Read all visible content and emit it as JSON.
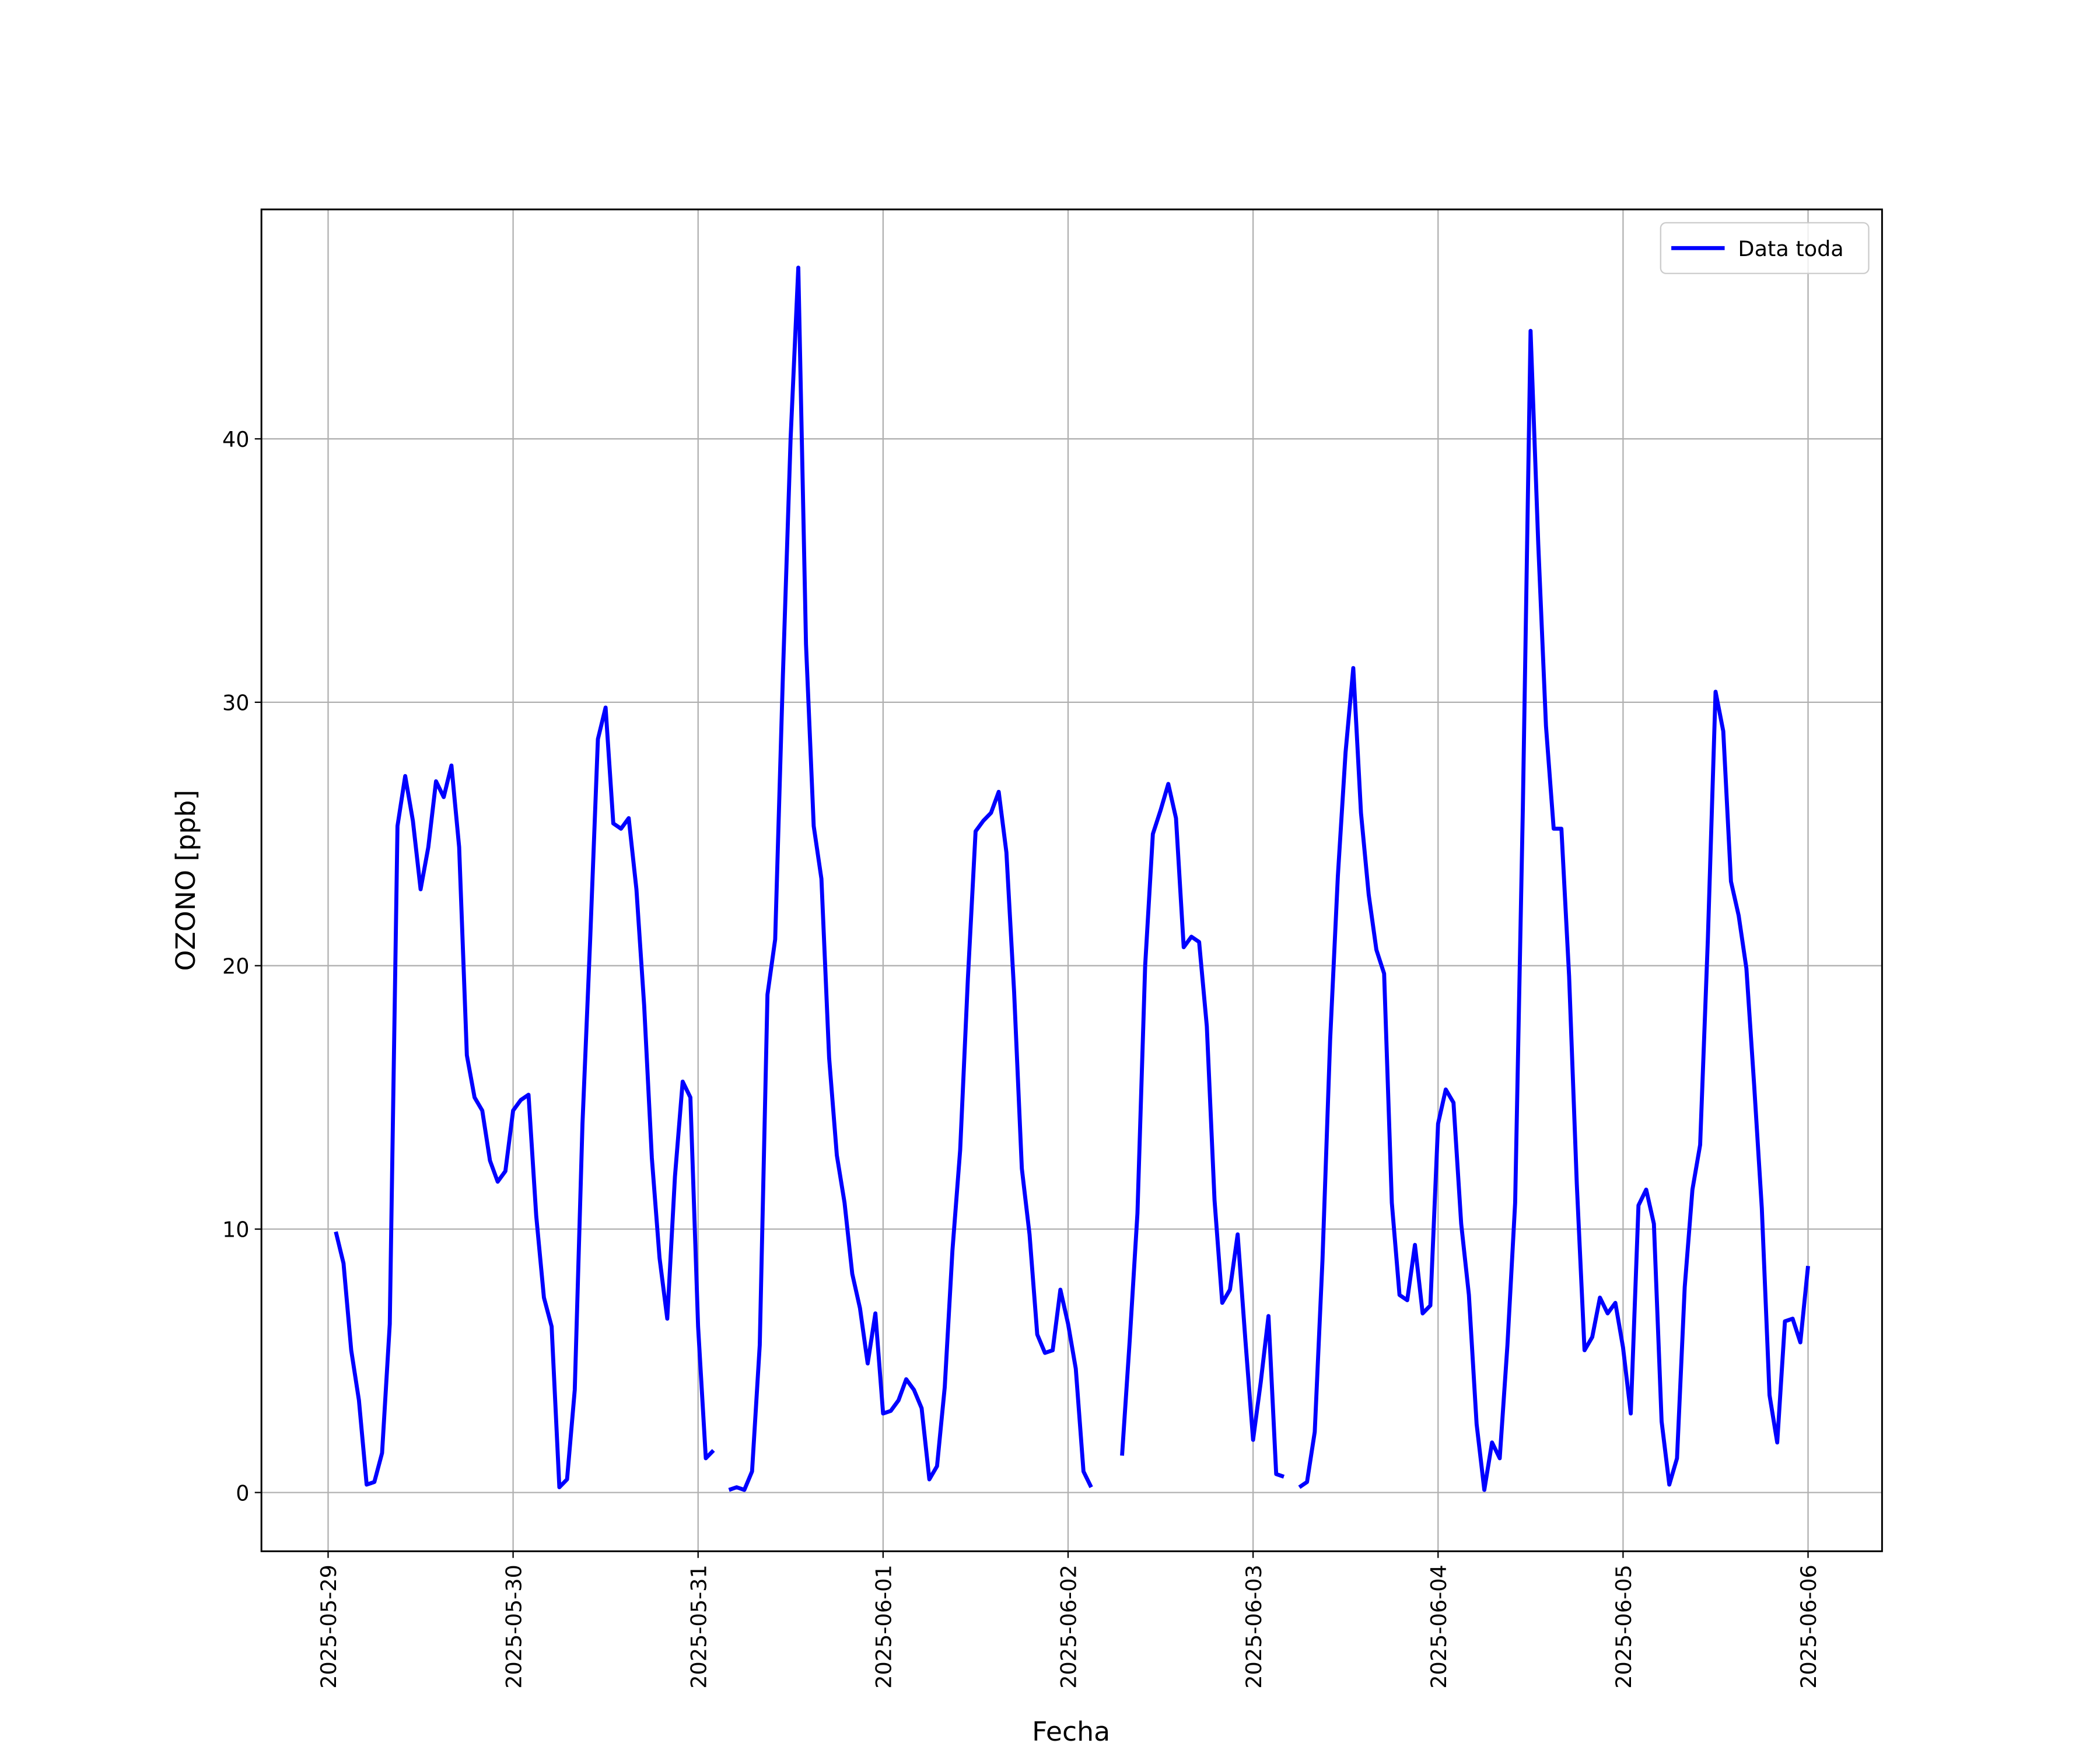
{
  "chart_data": {
    "type": "line",
    "xlabel": "Fecha",
    "ylabel": "OZONO [ppb]",
    "x": [
      1,
      2,
      3,
      4,
      5,
      6,
      7,
      8,
      9,
      10,
      11,
      12,
      13,
      14,
      15,
      16,
      17,
      18,
      19,
      20,
      21,
      22,
      23,
      24,
      25,
      26,
      27,
      28,
      29,
      30,
      31,
      32,
      33,
      34,
      35,
      36,
      37,
      38,
      39,
      40,
      41,
      42,
      43,
      44,
      45,
      46,
      47,
      48,
      49,
      50,
      51,
      52,
      53,
      54,
      55,
      56,
      57,
      58,
      59,
      60,
      61,
      62,
      63,
      64,
      65,
      66,
      67,
      68,
      69,
      70,
      71,
      72,
      73,
      74,
      75,
      76,
      77,
      78,
      79,
      80,
      81,
      82,
      83,
      84,
      85,
      86,
      87,
      88,
      89,
      90,
      91,
      92,
      93,
      94,
      95,
      96,
      97,
      98,
      99,
      100,
      101,
      102,
      103,
      104,
      105,
      106,
      107,
      108,
      109,
      110,
      111,
      112,
      113,
      114,
      115,
      116,
      117,
      118,
      119,
      120,
      121,
      122,
      123,
      124,
      125,
      126,
      127,
      128,
      129,
      130,
      131,
      132,
      133,
      134,
      135,
      136,
      137,
      138,
      139,
      140,
      141,
      142,
      143,
      144,
      145,
      146,
      147,
      148,
      149,
      150,
      151,
      152,
      153,
      154,
      155,
      156,
      157,
      158,
      159,
      160,
      161,
      162,
      163,
      164,
      165,
      166,
      167,
      168,
      169,
      170,
      171,
      172,
      173,
      174,
      175,
      176,
      177,
      178,
      179,
      180,
      181,
      182,
      183,
      184,
      185,
      186,
      187,
      188,
      189,
      190,
      191,
      192
    ],
    "series": [
      {
        "name": "Data toda",
        "color": "#0000ff",
        "values": [
          9.9,
          8.7,
          5.4,
          3.5,
          0.3,
          0.4,
          1.5,
          6.4,
          25.3,
          27.2,
          25.5,
          22.9,
          24.5,
          27.0,
          26.4,
          27.6,
          24.5,
          16.6,
          15.0,
          14.5,
          12.6,
          11.8,
          12.2,
          14.5,
          14.9,
          15.1,
          10.5,
          7.4,
          6.3,
          0.2,
          0.5,
          3.9,
          14.0,
          21.0,
          28.6,
          29.8,
          25.4,
          25.2,
          25.6,
          22.9,
          18.5,
          12.7,
          8.9,
          6.6,
          12.0,
          15.6,
          15.0,
          6.3,
          1.3,
          1.6,
          null,
          0.1,
          0.2,
          0.1,
          0.8,
          5.6,
          18.9,
          21.0,
          31.0,
          40.0,
          46.5,
          32.2,
          25.3,
          23.3,
          16.5,
          12.8,
          11.0,
          8.3,
          7.0,
          4.9,
          6.8,
          3.0,
          3.1,
          3.5,
          4.3,
          3.9,
          3.2,
          0.5,
          1.0,
          4.0,
          9.2,
          13.0,
          19.5,
          25.1,
          25.5,
          25.8,
          26.6,
          24.3,
          19.0,
          12.3,
          9.8,
          6.0,
          5.3,
          5.4,
          7.7,
          6.4,
          4.7,
          0.8,
          0.2,
          null,
          null,
          null,
          1.4,
          5.8,
          10.6,
          20.0,
          25.0,
          25.9,
          26.9,
          25.6,
          20.7,
          21.1,
          20.9,
          17.7,
          11.1,
          7.2,
          7.7,
          9.8,
          5.8,
          2.0,
          4.2,
          6.7,
          0.7,
          0.6,
          null,
          0.2,
          0.4,
          2.3,
          8.8,
          17.2,
          23.4,
          28.1,
          31.3,
          25.8,
          22.7,
          20.6,
          19.7,
          11.0,
          7.5,
          7.3,
          9.4,
          6.8,
          7.1,
          14.0,
          15.3,
          14.8,
          10.2,
          7.5,
          2.6,
          0.1,
          1.9,
          1.3,
          5.6,
          11.0,
          26.0,
          44.1,
          36.0,
          29.1,
          25.2,
          25.2,
          19.6,
          11.7,
          5.4,
          5.9,
          7.4,
          6.8,
          7.2,
          5.5,
          3.0,
          10.9,
          11.5,
          10.2,
          2.7,
          0.3,
          1.3,
          7.8,
          11.5,
          13.2,
          21.0,
          30.4,
          28.9,
          23.2,
          21.9,
          19.9,
          15.5,
          10.8,
          3.7,
          1.9,
          6.5,
          6.6,
          5.7,
          8.6
        ]
      }
    ],
    "xlim": [
      -8.65,
      201.6
    ],
    "xticks": [
      {
        "value": 0,
        "label": "2025-05-29"
      },
      {
        "value": 24,
        "label": "2025-05-30"
      },
      {
        "value": 48,
        "label": "2025-05-31"
      },
      {
        "value": 72,
        "label": "2025-06-01"
      },
      {
        "value": 96,
        "label": "2025-06-02"
      },
      {
        "value": 120,
        "label": "2025-06-03"
      },
      {
        "value": 144,
        "label": "2025-06-04"
      },
      {
        "value": 168,
        "label": "2025-06-05"
      },
      {
        "value": 192,
        "label": "2025-06-06"
      }
    ],
    "ylim": [
      -2.23,
      48.71
    ],
    "yticks": [
      0,
      10,
      20,
      30,
      40
    ],
    "grid": true,
    "legend": "upper right"
  }
}
